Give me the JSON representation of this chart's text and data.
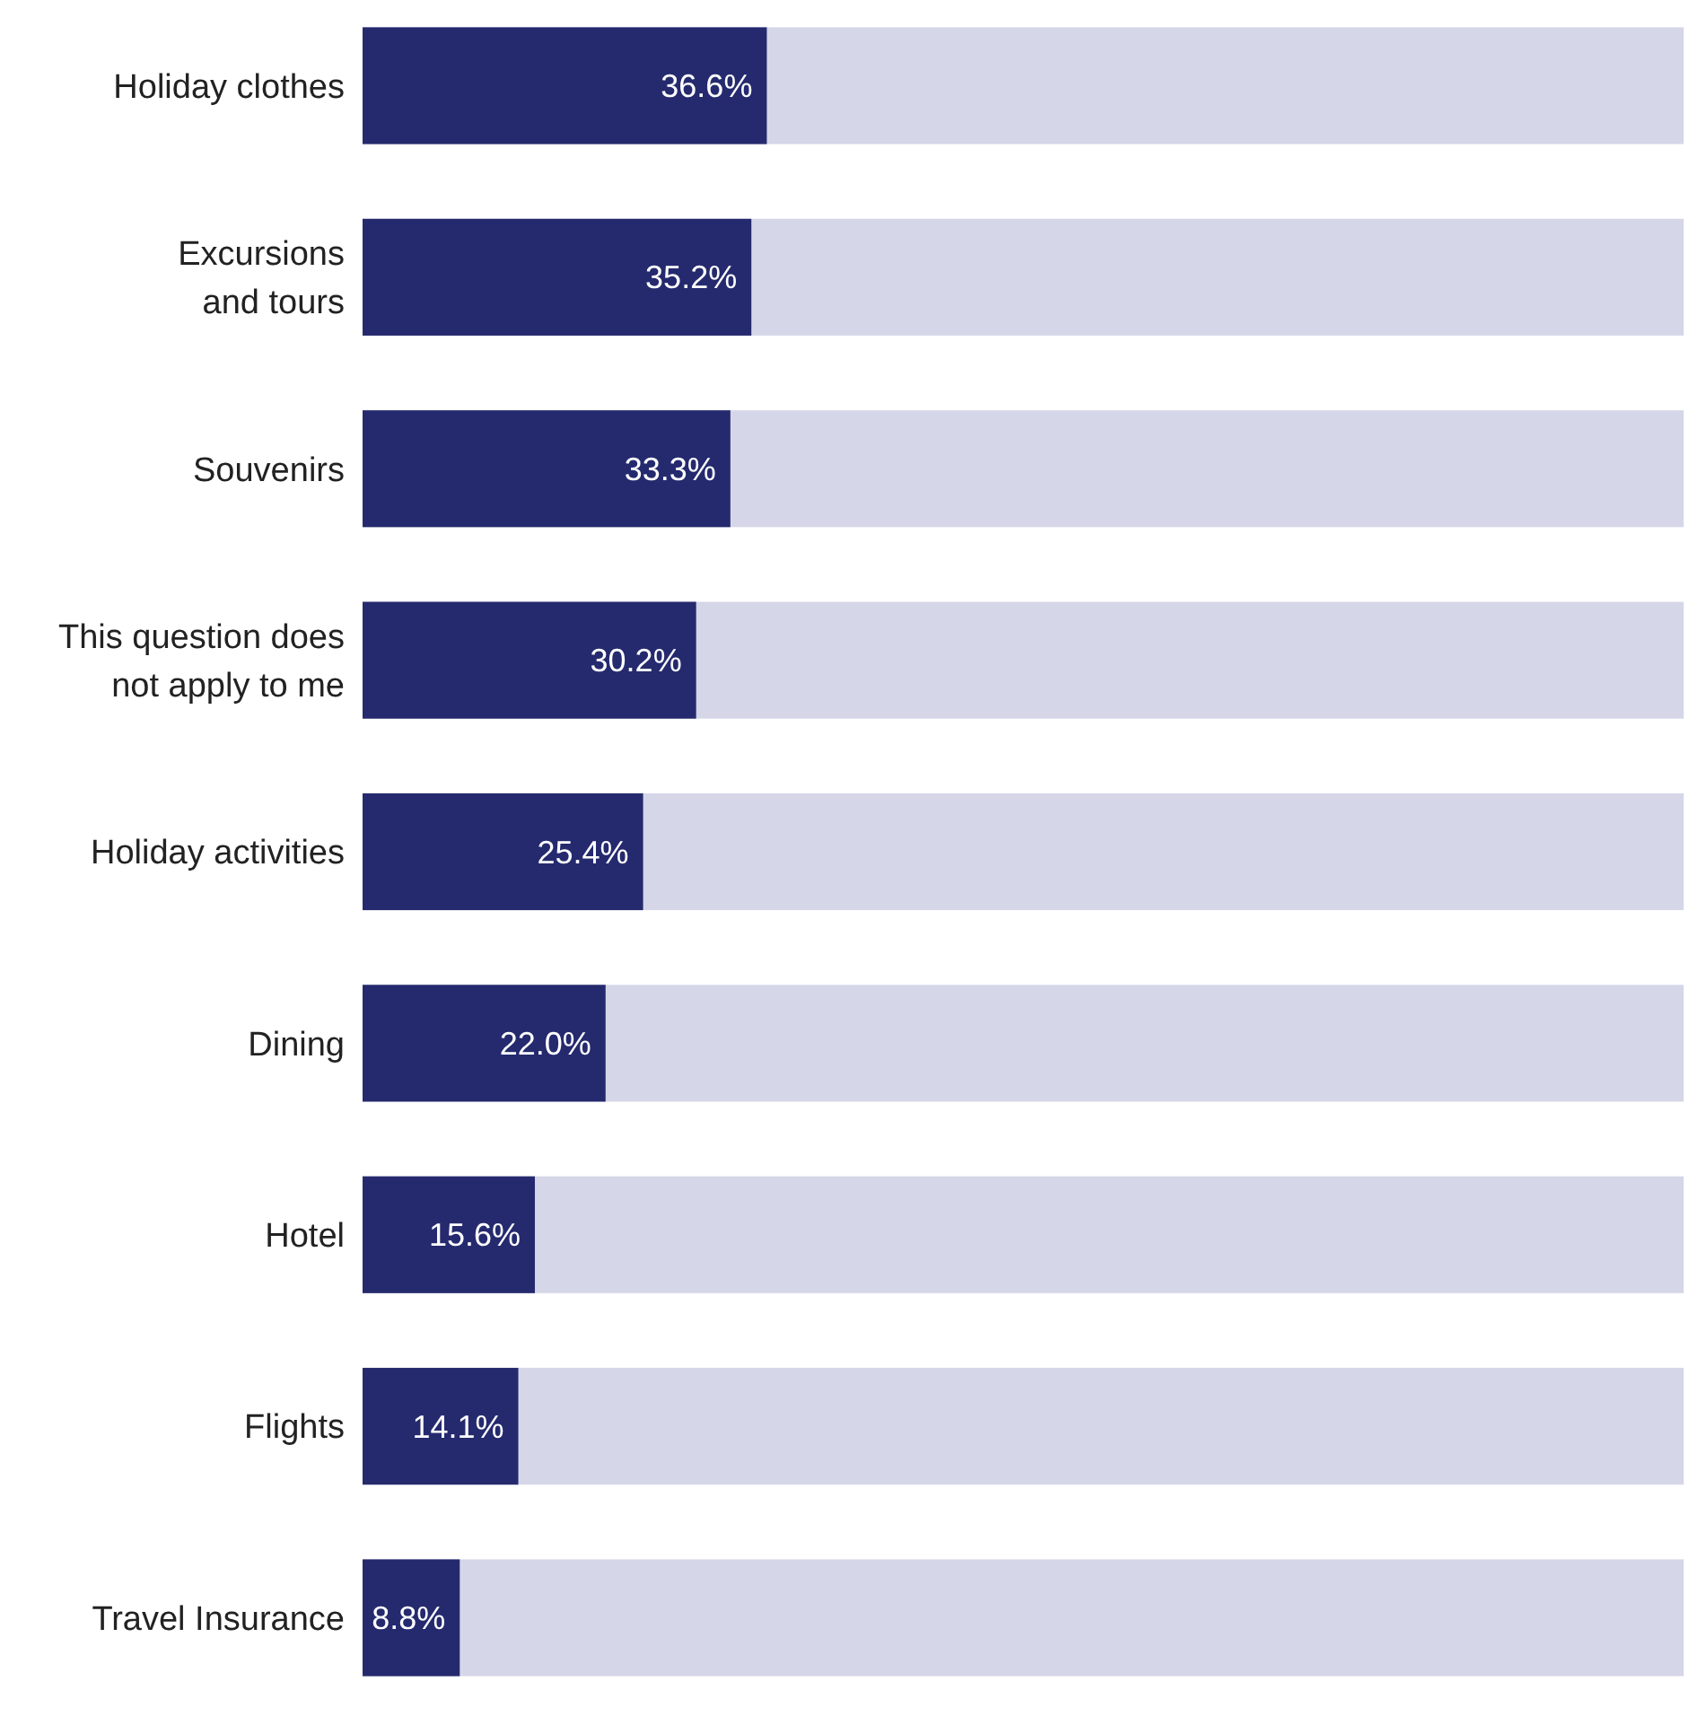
{
  "chart_data": {
    "type": "bar",
    "orientation": "horizontal",
    "categories": [
      "Holiday clothes",
      "Excursions\nand tours",
      "Souvenirs",
      "This question does\nnot apply to me",
      "Holiday activities",
      "Dining",
      "Hotel",
      "Flights",
      "Travel Insurance"
    ],
    "values": [
      36.6,
      35.2,
      33.3,
      30.2,
      25.4,
      22.0,
      15.6,
      14.1,
      8.8
    ],
    "value_labels": [
      "36.6%",
      "35.2%",
      "33.3%",
      "30.2%",
      "25.4%",
      "22.0%",
      "15.6%",
      "14.1%",
      "8.8%"
    ],
    "color": "#252a6e"
  }
}
